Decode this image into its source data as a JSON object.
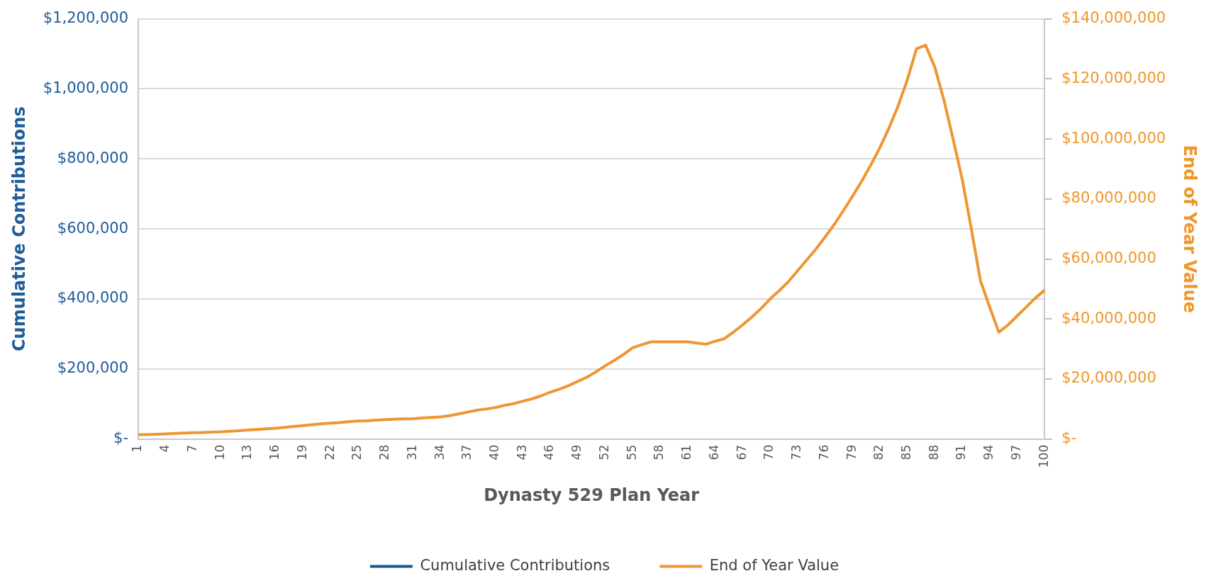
{
  "chart_data": {
    "type": "line",
    "xlabel": "Dynasty 529 Plan Year",
    "ylabel": "Cumulative Contributions",
    "y2label": "End of Year Value",
    "categories": [
      "1",
      null,
      null,
      "4",
      null,
      null,
      "7",
      null,
      null,
      "10",
      null,
      null,
      "13",
      null,
      null,
      "16",
      null,
      null,
      "19",
      null,
      null,
      "22",
      null,
      null,
      "25",
      null,
      null,
      "28",
      null,
      null,
      "31",
      null,
      null,
      "34",
      null,
      null,
      "37",
      null,
      null,
      "40",
      null,
      null,
      "43",
      null,
      null,
      "46",
      null,
      null,
      "49",
      null,
      null,
      "52",
      null,
      null,
      "55",
      null,
      null,
      "58",
      null,
      null,
      "61",
      null,
      null,
      "64",
      null,
      null,
      "67",
      null,
      null,
      "70",
      null,
      null,
      "73",
      null,
      null,
      "76",
      null,
      null,
      "79",
      null,
      null,
      "82",
      null,
      null,
      "85",
      null,
      null,
      "88",
      null,
      null,
      "91",
      null,
      null,
      "94",
      null,
      null,
      "97",
      null,
      null,
      "100"
    ],
    "series": [
      {
        "name": "Cumulative Contributions",
        "color": "#1a5b96",
        "axis": "y",
        "values": [
          null,
          null,
          null,
          null,
          null,
          null,
          null,
          null,
          null,
          null,
          null,
          null,
          null,
          null,
          null,
          null,
          null,
          null,
          null,
          null,
          null,
          null,
          null,
          null,
          null,
          null,
          null,
          null,
          null,
          null,
          null,
          null,
          null,
          null,
          null,
          null,
          null,
          null,
          null,
          null,
          null,
          null,
          null,
          null,
          null,
          null,
          null,
          null,
          null,
          null,
          null,
          null,
          null,
          null,
          null,
          null,
          null,
          null,
          null,
          null,
          null,
          null,
          null,
          null,
          null,
          null,
          null,
          null,
          null,
          null,
          null,
          null,
          null,
          null,
          null,
          null,
          null,
          null,
          null,
          null,
          null,
          null,
          null,
          null,
          null,
          null,
          null,
          null,
          null,
          null,
          null,
          null,
          null,
          null,
          null,
          null,
          null,
          null,
          null,
          null
        ]
      },
      {
        "name": "End of Year Value",
        "color": "#ee9633",
        "axis": "y2",
        "values": [
          1500000,
          1500000,
          1600000,
          1700000,
          1900000,
          2000000,
          2100000,
          2200000,
          2300000,
          2400000,
          2600000,
          2800000,
          3000000,
          3200000,
          3400000,
          3600000,
          3900000,
          4200000,
          4500000,
          4800000,
          5100000,
          5300000,
          5500000,
          5800000,
          6000000,
          6100000,
          6300000,
          6500000,
          6600000,
          6700000,
          6800000,
          7000000,
          7200000,
          7400000,
          7800000,
          8400000,
          9000000,
          9600000,
          10000000,
          10500000,
          11200000,
          11800000,
          12600000,
          13400000,
          14400000,
          15600000,
          16600000,
          17800000,
          19200000,
          20600000,
          22400000,
          24400000,
          26200000,
          28200000,
          30400000,
          31400000,
          32400000,
          32400000,
          32400000,
          32400000,
          32400000,
          32000000,
          31600000,
          32600000,
          33400000,
          35600000,
          38000000,
          40600000,
          43400000,
          46600000,
          49400000,
          52400000,
          56000000,
          59600000,
          63200000,
          67200000,
          71400000,
          76000000,
          80800000,
          85800000,
          91200000,
          97000000,
          103600000,
          111000000,
          119600000,
          130000000,
          131200000,
          124000000,
          113000000,
          100000000,
          86600000,
          70000000,
          52700000,
          44000000,
          35600000,
          38000000,
          41000000,
          44000000,
          47000000,
          49600000
        ]
      }
    ],
    "ylim": [
      0,
      1200000
    ],
    "yticks": [
      {
        "value": 0,
        "label": "$-"
      },
      {
        "value": 200000,
        "label": "$200,000"
      },
      {
        "value": 400000,
        "label": "$400,000"
      },
      {
        "value": 600000,
        "label": "$600,000"
      },
      {
        "value": 800000,
        "label": "$800,000"
      },
      {
        "value": 1000000,
        "label": "$1,000,000"
      },
      {
        "value": 1200000,
        "label": "$1,200,000"
      }
    ],
    "y2lim": [
      0,
      140000000
    ],
    "y2ticks": [
      {
        "value": 0,
        "label": "$-"
      },
      {
        "value": 20000000,
        "label": "$20,000,000"
      },
      {
        "value": 40000000,
        "label": "$40,000,000"
      },
      {
        "value": 60000000,
        "label": "$60,000,000"
      },
      {
        "value": 80000000,
        "label": "$80,000,000"
      },
      {
        "value": 100000000,
        "label": "$100,000,000"
      },
      {
        "value": 120000000,
        "label": "$120,000,000"
      },
      {
        "value": 140000000,
        "label": "$140,000,000"
      }
    ],
    "grid": "y",
    "legend": "bottom",
    "marker": "none"
  }
}
